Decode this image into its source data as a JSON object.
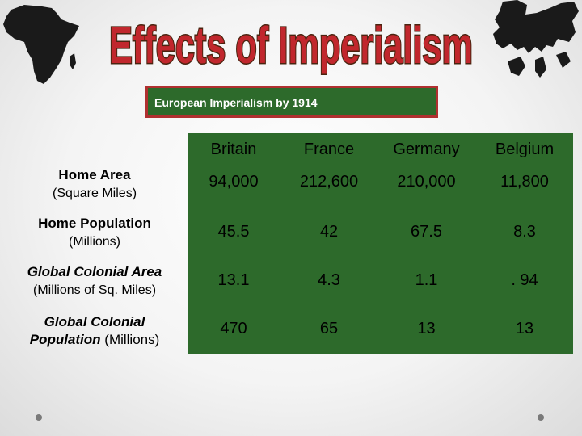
{
  "title": "Effects of Imperialism",
  "subtitle": "European Imperialism by 1914",
  "table": {
    "columns": [
      "Britain",
      "France",
      "Germany",
      "Belgium"
    ],
    "rows": [
      {
        "label": "Home Area",
        "sublabel": "(Square Miles)",
        "values": [
          "94,000",
          "212,600",
          "210,000",
          "11,800"
        ]
      },
      {
        "label": "Home Population",
        "sublabel": "(Millions)",
        "values": [
          "45.5",
          "42",
          "67.5",
          "8.3"
        ]
      },
      {
        "label": "Global Colonial Area",
        "sublabel": "(Millions of Sq. Miles)",
        "values": [
          "13.1",
          "4.3",
          "1.1",
          ". 94"
        ]
      },
      {
        "label": "Global Colonial",
        "label_line2": "Population",
        "sublabel": "(Millions)",
        "values": [
          "470",
          "65",
          "13",
          "13"
        ]
      }
    ]
  },
  "colors": {
    "title_fill": "#c1272d",
    "title_stroke": "#4a2410",
    "table_green": "#2d6a2b",
    "header_border": "#b03030"
  },
  "icons": [
    "africa-map-icon",
    "europe-map-icon"
  ]
}
